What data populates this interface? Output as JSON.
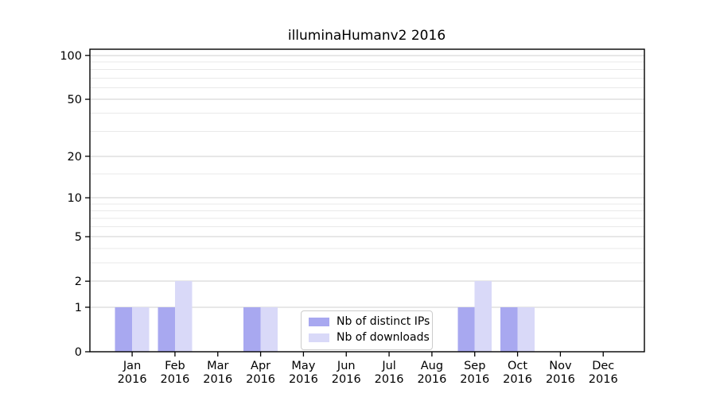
{
  "chart_data": {
    "type": "bar",
    "title": "illuminaHumanv2 2016",
    "categories": [
      "Jan 2016",
      "Feb 2016",
      "Mar 2016",
      "Apr 2016",
      "May 2016",
      "Jun 2016",
      "Jul 2016",
      "Aug 2016",
      "Sep 2016",
      "Oct 2016",
      "Nov 2016",
      "Dec 2016"
    ],
    "series": [
      {
        "name": "Nb of distinct IPs",
        "color": "#a8a8f0",
        "values": [
          1,
          1,
          0,
          1,
          0,
          0,
          0,
          0,
          1,
          1,
          0,
          0
        ]
      },
      {
        "name": "Nb of downloads",
        "color": "#d9d9f8",
        "values": [
          1,
          2,
          0,
          1,
          0,
          0,
          0,
          0,
          2,
          1,
          0,
          0
        ]
      }
    ],
    "y_axis": {
      "scale": "log10(1+x)",
      "major_ticks": [
        0,
        1,
        2,
        5,
        10,
        20,
        50,
        100
      ],
      "minor_gridlines": [
        3,
        4,
        6,
        7,
        8,
        9,
        15,
        30,
        40,
        60,
        70,
        80,
        90
      ],
      "range": [
        0,
        110
      ]
    },
    "xlabel": "",
    "ylabel": "",
    "grid": {
      "major_color": "#cfcfcf",
      "minor_color": "#e9e9e9"
    },
    "axis_color": "#000000",
    "legend": {
      "position": "inside lower center-left"
    }
  }
}
